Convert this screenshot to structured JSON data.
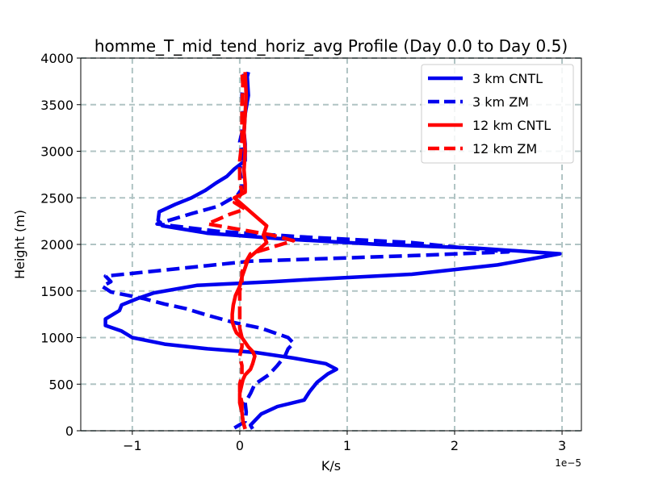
{
  "chart_data": {
    "type": "line",
    "title": "homme_T_mid_tend_horiz_avg Profile (Day 0.0 to Day 0.5)",
    "xlabel": "K/s",
    "ylabel": "Height (m)",
    "x_offset_label": "1e−5",
    "xlim": [
      -1.48,
      3.18
    ],
    "ylim": [
      0,
      4000
    ],
    "xticks": [
      -1,
      0,
      1,
      2,
      3
    ],
    "xtick_labels": [
      "−1",
      "0",
      "1",
      "2",
      "3"
    ],
    "yticks": [
      0,
      500,
      1000,
      1500,
      2000,
      2500,
      3000,
      3500,
      4000
    ],
    "ytick_labels": [
      "0",
      "500",
      "1000",
      "1500",
      "2000",
      "2500",
      "3000",
      "3500",
      "4000"
    ],
    "grid": true,
    "legend_position": "top-right",
    "series": [
      {
        "name": "3 km CNTL",
        "color": "#0000ee",
        "dash": "solid",
        "points": [
          [
            0.12,
            20
          ],
          [
            0.1,
            60
          ],
          [
            0.2,
            180
          ],
          [
            0.35,
            260
          ],
          [
            0.6,
            330
          ],
          [
            0.65,
            420
          ],
          [
            0.72,
            520
          ],
          [
            0.82,
            610
          ],
          [
            0.9,
            660
          ],
          [
            0.8,
            720
          ],
          [
            0.5,
            780
          ],
          [
            0.15,
            840
          ],
          [
            -0.3,
            880
          ],
          [
            -0.7,
            930
          ],
          [
            -1.0,
            1000
          ],
          [
            -1.1,
            1070
          ],
          [
            -1.25,
            1130
          ],
          [
            -1.25,
            1200
          ],
          [
            -1.12,
            1290
          ],
          [
            -1.1,
            1350
          ],
          [
            -0.95,
            1420
          ],
          [
            -0.8,
            1480
          ],
          [
            -0.4,
            1560
          ],
          [
            0.3,
            1600
          ],
          [
            0.6,
            1620
          ],
          [
            1.6,
            1680
          ],
          [
            2.4,
            1780
          ],
          [
            2.98,
            1900
          ],
          [
            2.2,
            1960
          ],
          [
            1.3,
            2000
          ],
          [
            0.4,
            2060
          ],
          [
            -0.3,
            2120
          ],
          [
            -0.72,
            2200
          ],
          [
            -0.76,
            2260
          ],
          [
            -0.75,
            2350
          ],
          [
            -0.6,
            2430
          ],
          [
            -0.45,
            2500
          ],
          [
            -0.32,
            2580
          ],
          [
            -0.22,
            2660
          ],
          [
            -0.12,
            2730
          ],
          [
            -0.05,
            2810
          ],
          [
            0.05,
            2900
          ],
          [
            0.05,
            3000
          ],
          [
            0.05,
            3080
          ],
          [
            0.04,
            3200
          ],
          [
            0.05,
            3400
          ],
          [
            0.08,
            3600
          ],
          [
            0.07,
            3800
          ],
          [
            0.08,
            3850
          ]
        ]
      },
      {
        "name": "3 km ZM",
        "color": "#0000ee",
        "dash": "dashed",
        "points": [
          [
            -0.05,
            30
          ],
          [
            0.05,
            100
          ],
          [
            0.06,
            200
          ],
          [
            0.05,
            300
          ],
          [
            0.1,
            400
          ],
          [
            0.14,
            500
          ],
          [
            0.27,
            600
          ],
          [
            0.35,
            700
          ],
          [
            0.42,
            800
          ],
          [
            0.45,
            880
          ],
          [
            0.5,
            940
          ],
          [
            0.45,
            1000
          ],
          [
            0.2,
            1100
          ],
          [
            -0.05,
            1160
          ],
          [
            -0.3,
            1240
          ],
          [
            -0.5,
            1310
          ],
          [
            -0.7,
            1360
          ],
          [
            -0.9,
            1420
          ],
          [
            -1.2,
            1490
          ],
          [
            -1.28,
            1550
          ],
          [
            -1.2,
            1600
          ],
          [
            -1.25,
            1660
          ],
          [
            0.1,
            1820
          ],
          [
            1.6,
            1880
          ],
          [
            2.5,
            1920
          ],
          [
            2.1,
            1960
          ],
          [
            1.6,
            2020
          ],
          [
            0.6,
            2080
          ],
          [
            -0.2,
            2140
          ],
          [
            -0.77,
            2220
          ],
          [
            -0.45,
            2330
          ],
          [
            -0.2,
            2410
          ],
          [
            -0.02,
            2530
          ],
          [
            0.02,
            2600
          ],
          [
            0.02,
            2650
          ],
          [
            0.0,
            2800
          ],
          [
            0.02,
            2900
          ],
          [
            0.02,
            3000
          ],
          [
            0.0,
            3100
          ],
          [
            0.02,
            3200
          ],
          [
            0.03,
            3400
          ],
          [
            0.02,
            3600
          ],
          [
            0.04,
            3850
          ]
        ]
      },
      {
        "name": "12 km CNTL",
        "color": "#ff0000",
        "dash": "solid",
        "points": [
          [
            0.05,
            20
          ],
          [
            0.03,
            100
          ],
          [
            0.02,
            200
          ],
          [
            0.0,
            300
          ],
          [
            0.0,
            400
          ],
          [
            0.03,
            550
          ],
          [
            0.05,
            600
          ],
          [
            0.1,
            660
          ],
          [
            0.12,
            720
          ],
          [
            0.14,
            800
          ],
          [
            0.12,
            850
          ],
          [
            0.08,
            900
          ],
          [
            0.05,
            950
          ],
          [
            0.02,
            1000
          ],
          [
            -0.03,
            1050
          ],
          [
            -0.05,
            1100
          ],
          [
            -0.07,
            1170
          ],
          [
            -0.07,
            1250
          ],
          [
            -0.06,
            1350
          ],
          [
            -0.04,
            1450
          ],
          [
            0.0,
            1550
          ],
          [
            0.02,
            1650
          ],
          [
            0.05,
            1750
          ],
          [
            0.08,
            1850
          ],
          [
            0.18,
            1950
          ],
          [
            0.25,
            2020
          ],
          [
            0.22,
            2100
          ],
          [
            0.25,
            2200
          ],
          [
            0.15,
            2300
          ],
          [
            0.05,
            2400
          ],
          [
            -0.05,
            2500
          ],
          [
            0.05,
            2560
          ],
          [
            0.05,
            2650
          ],
          [
            0.04,
            2800
          ],
          [
            0.05,
            3000
          ],
          [
            0.04,
            3200
          ],
          [
            0.05,
            3400
          ],
          [
            0.06,
            3600
          ],
          [
            0.05,
            3850
          ]
        ]
      },
      {
        "name": "12 km ZM",
        "color": "#ff0000",
        "dash": "dashed",
        "points": [
          [
            0.05,
            20
          ],
          [
            0.03,
            100
          ],
          [
            0.02,
            200
          ],
          [
            0.02,
            300
          ],
          [
            0.0,
            400
          ],
          [
            0.0,
            500
          ],
          [
            0.02,
            600
          ],
          [
            0.02,
            700
          ],
          [
            0.0,
            800
          ],
          [
            0.02,
            900
          ],
          [
            0.02,
            1000
          ],
          [
            0.0,
            1100
          ],
          [
            0.0,
            1200
          ],
          [
            0.0,
            1300
          ],
          [
            0.0,
            1400
          ],
          [
            0.0,
            1500
          ],
          [
            0.02,
            1600
          ],
          [
            0.02,
            1700
          ],
          [
            0.05,
            1800
          ],
          [
            0.1,
            1900
          ],
          [
            0.5,
            2040
          ],
          [
            0.3,
            2100
          ],
          [
            -0.3,
            2220
          ],
          [
            -0.1,
            2320
          ],
          [
            0.05,
            2380
          ],
          [
            -0.05,
            2450
          ],
          [
            0.02,
            2550
          ],
          [
            0.0,
            2700
          ],
          [
            0.0,
            2900
          ],
          [
            0.02,
            3100
          ],
          [
            0.02,
            3300
          ],
          [
            0.02,
            3500
          ],
          [
            0.03,
            3700
          ],
          [
            0.02,
            3850
          ]
        ]
      }
    ]
  }
}
